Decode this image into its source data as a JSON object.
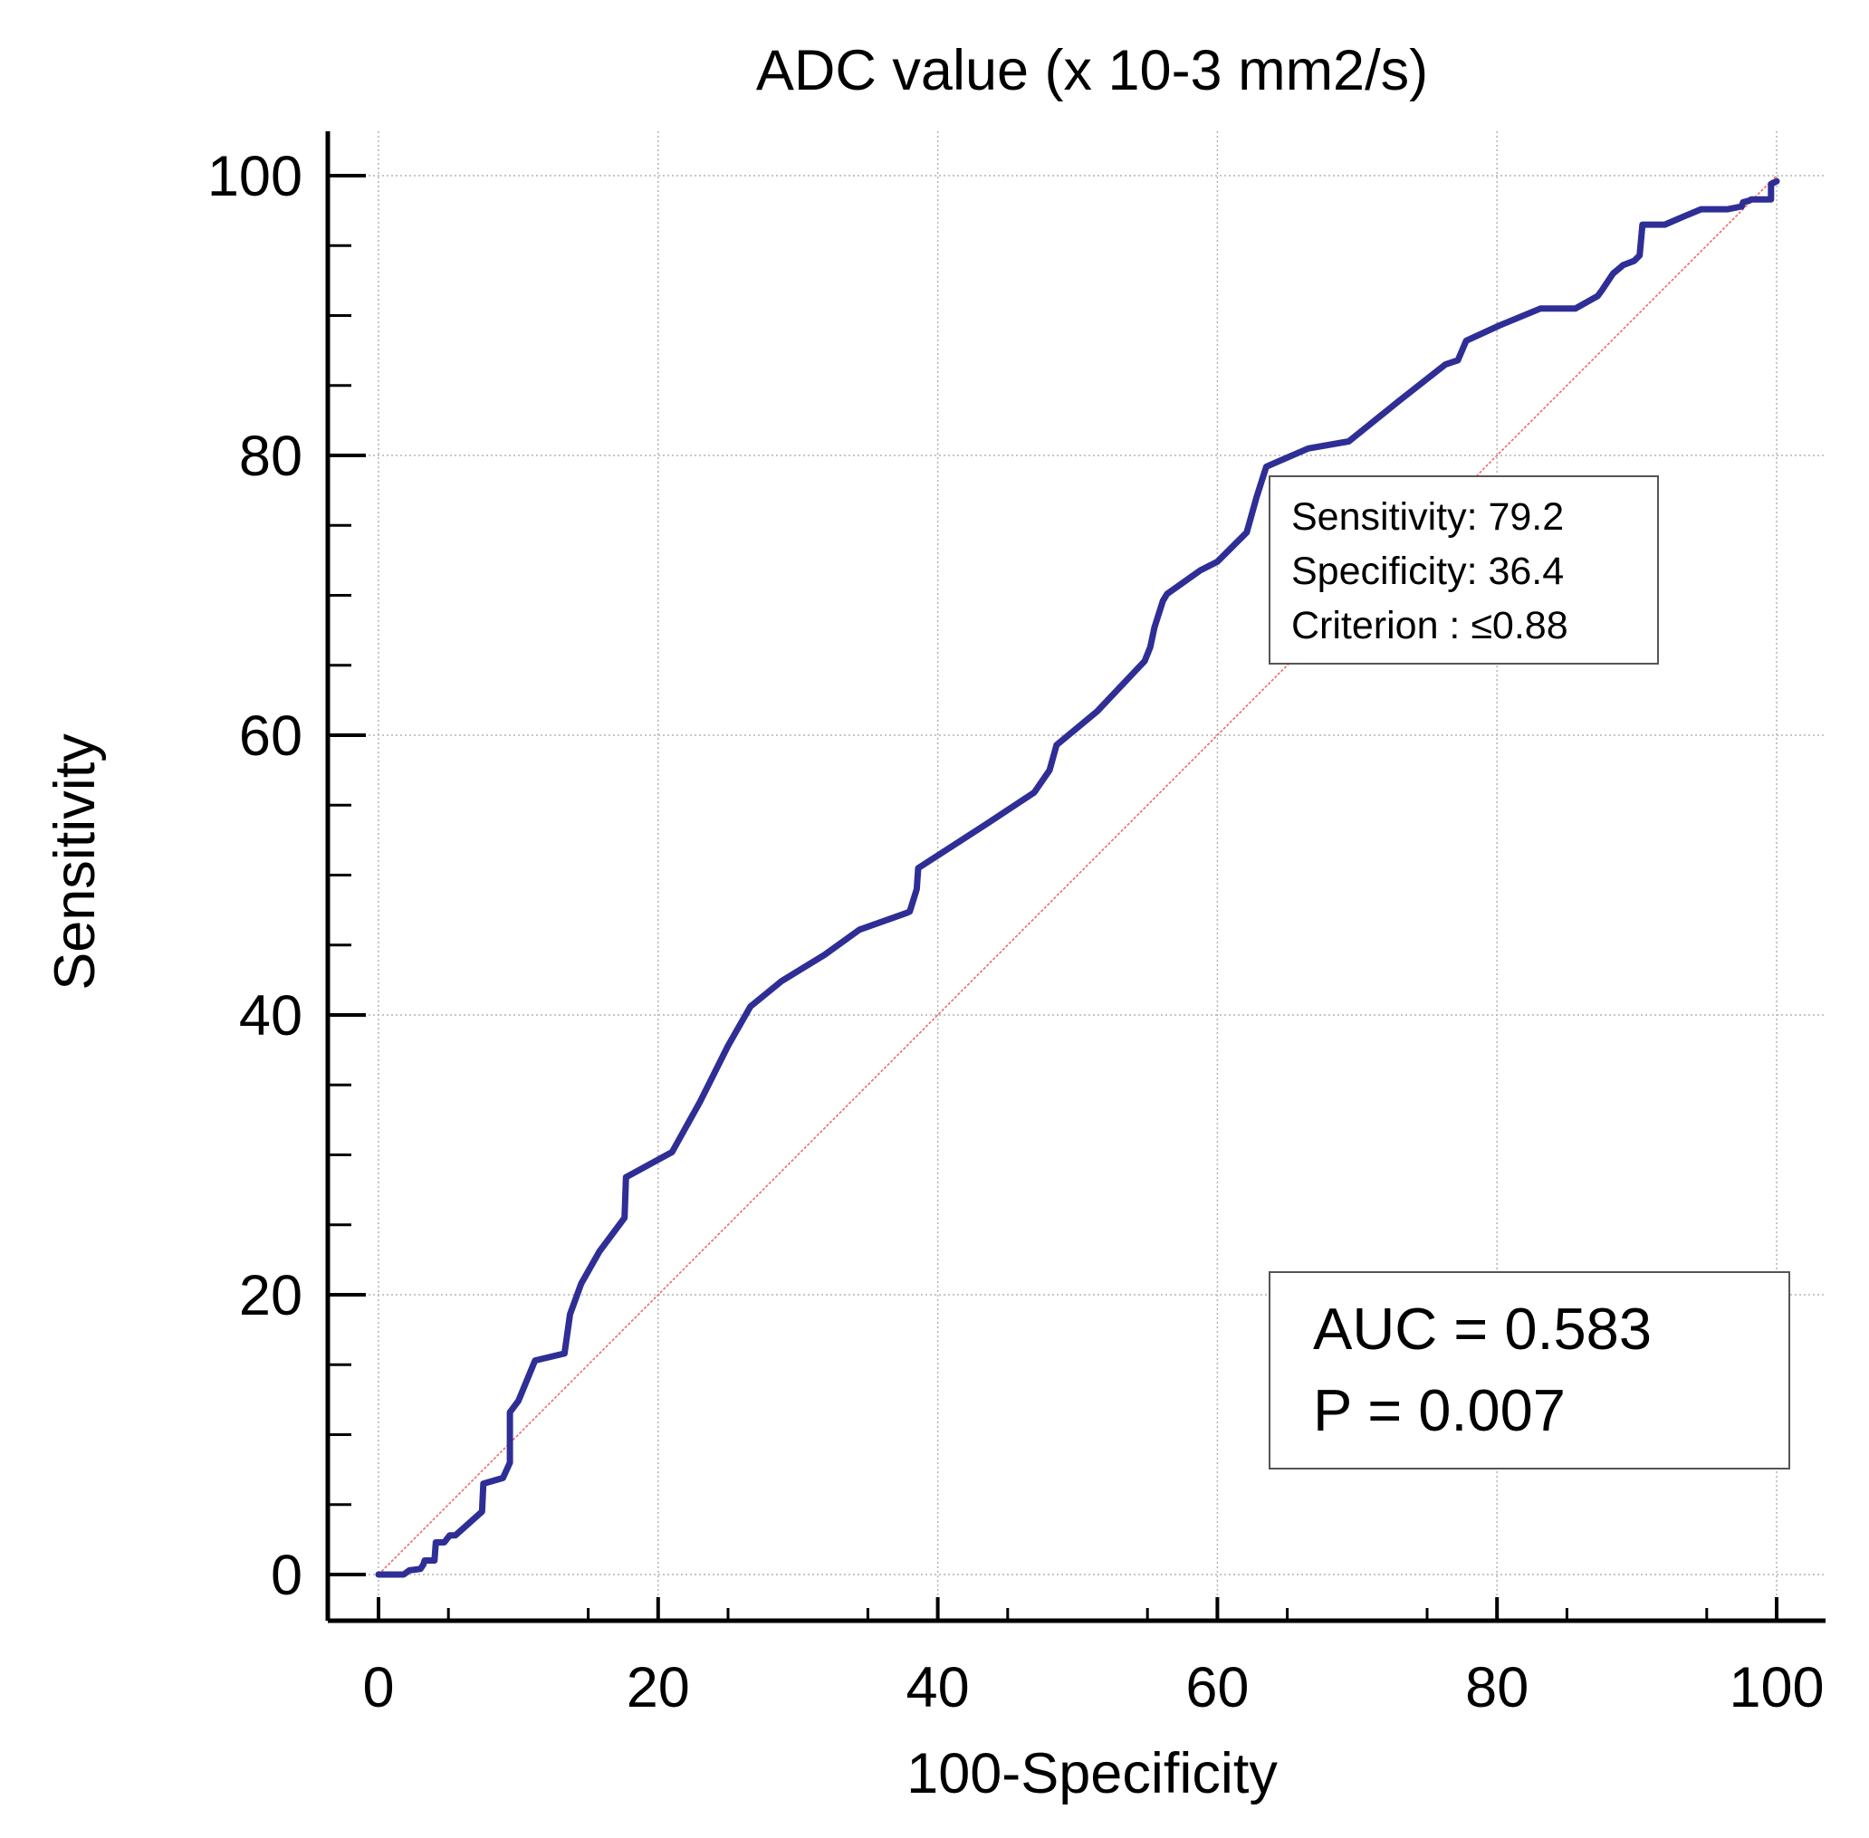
{
  "chart_data": {
    "type": "line",
    "title": "ADC value (x 10-3 mm2/s)",
    "xlabel": "100-Specificity",
    "ylabel": "Sensitivity",
    "xlim": [
      0,
      100
    ],
    "ylim": [
      0,
      100
    ],
    "x_ticks": [
      "0",
      "20",
      "40",
      "60",
      "80",
      "100"
    ],
    "y_ticks": [
      "0",
      "20",
      "40",
      "60",
      "80",
      "100"
    ],
    "x_tick_values": [
      0,
      20,
      40,
      60,
      80,
      100
    ],
    "y_tick_values": [
      0,
      20,
      40,
      60,
      80,
      100
    ],
    "grid": true,
    "series": [
      {
        "name": "ROC curve",
        "color": "#2e2e96",
        "x": [
          0,
          1.8,
          2.2,
          3.0,
          3.2,
          3.3,
          4.0,
          4.1,
          4.7,
          5.1,
          5.5,
          6.4,
          7.4,
          7.5,
          8.9,
          9.4,
          9.4,
          10.0,
          11.2,
          13.3,
          13.7,
          14.5,
          15.8,
          17.6,
          17.7,
          21.0,
          23.0,
          25.0,
          26.6,
          28.8,
          31.9,
          34.4,
          37.8,
          38.0,
          38.5,
          38.6,
          43.4,
          46.9,
          48.0,
          48.5,
          51.4,
          54.8,
          55.2,
          55.5,
          56.1,
          56.4,
          58.8,
          60.0,
          62.1,
          62.8,
          63.5,
          66.5,
          69.4,
          73.0,
          76.3,
          77.2,
          77.8,
          80.2,
          83.1,
          84.6,
          85.6,
          87.2,
          87.5,
          88.3,
          88.9,
          89.0,
          89.8,
          90.2,
          90.4,
          90.7,
          90.8,
          92.0,
          93.4,
          94.6,
          96.5,
          97.5,
          97.6,
          98.0,
          98.2,
          99.6,
          99.6,
          100.0
        ],
        "y": [
          0,
          0,
          0.3,
          0.4,
          0.7,
          1.0,
          1.0,
          2.3,
          2.3,
          2.8,
          2.8,
          3.6,
          4.5,
          6.5,
          6.9,
          8.0,
          11.6,
          12.4,
          15.3,
          15.8,
          18.6,
          20.8,
          23.1,
          25.5,
          28.4,
          30.2,
          33.8,
          37.8,
          40.6,
          42.4,
          44.3,
          46.1,
          47.3,
          47.4,
          49.0,
          50.5,
          53.6,
          55.9,
          57.5,
          59.3,
          61.7,
          65.3,
          66.3,
          67.7,
          69.6,
          70.1,
          71.8,
          72.4,
          74.5,
          77.0,
          79.2,
          80.5,
          81.0,
          83.9,
          86.5,
          86.8,
          88.2,
          89.3,
          90.5,
          90.5,
          90.5,
          91.4,
          91.8,
          93.0,
          93.5,
          93.6,
          93.9,
          94.3,
          96.5,
          96.5,
          96.5,
          96.5,
          97.1,
          97.6,
          97.6,
          97.8,
          98.1,
          98.2,
          98.3,
          98.3,
          99.4,
          99.6
        ]
      }
    ],
    "reference_line": {
      "name": "diagonal",
      "color": "#e86a6a",
      "x": [
        0,
        100
      ],
      "y": [
        0,
        100
      ]
    },
    "operating_point": {
      "sensitivity_text": "Sensitivity: 79.2",
      "specificity_text": "Specificity: 36.4",
      "criterion_text": "Criterion : ≤0.88"
    },
    "stats_box": {
      "auc_text": "AUC = 0.583",
      "p_text": "P = 0.007"
    }
  }
}
